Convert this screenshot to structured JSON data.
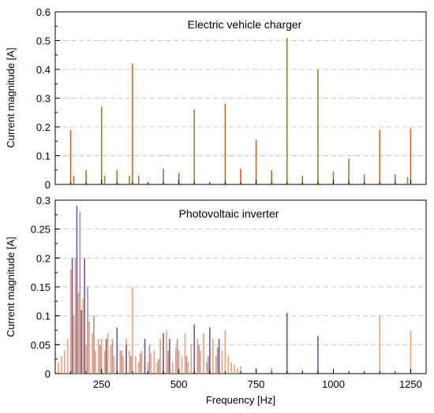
{
  "chart_data": [
    {
      "type": "bar",
      "title": "Electric vehicle charger",
      "ylabel": "Current magnitude [A]",
      "xlabel": "",
      "xlim": [
        100,
        1300
      ],
      "ylim": [
        0,
        0.6
      ],
      "y_ticks": [
        "0",
        "0.1",
        "0.2",
        "0.3",
        "0.4",
        "0.5",
        "0.6"
      ],
      "x_tick_labels_shown": false,
      "grid": "horizontal-dashed",
      "series": [
        {
          "color": "#c8662a",
          "x": [
            150,
            200,
            250,
            300,
            350,
            450,
            500,
            550,
            650,
            700,
            750,
            800,
            850,
            900,
            950,
            1000,
            1050,
            1100,
            1150,
            1200,
            1250
          ],
          "values": [
            0.19,
            0.05,
            0.025,
            0.05,
            0.42,
            0.055,
            0.04,
            0.02,
            0.28,
            0.055,
            0.155,
            0.05,
            0.025,
            0.03,
            0.02,
            0.045,
            0.02,
            0.035,
            0.19,
            0.035,
            0.195
          ]
        },
        {
          "color": "#7a8f3c",
          "x": [
            160,
            250,
            260,
            340,
            370,
            550,
            650,
            850,
            950,
            1050,
            1240
          ],
          "values": [
            0.03,
            0.27,
            0.03,
            0.03,
            0.03,
            0.26,
            0.02,
            0.51,
            0.4,
            0.09,
            0.025
          ]
        }
      ]
    },
    {
      "type": "bar",
      "title": "Photovoltaic inverter",
      "ylabel": "Current magnitude [A]",
      "xlabel": "Frequency [Hz]",
      "xlim": [
        100,
        1300
      ],
      "ylim": [
        0,
        0.3
      ],
      "y_ticks": [
        "0",
        "0.05",
        "0.1",
        "0.15",
        "0.2",
        "0.25",
        "0.3"
      ],
      "x_ticks": [
        "250",
        "500",
        "750",
        "1000",
        "1250"
      ],
      "grid": "horizontal-dashed",
      "series": [
        {
          "color": "#e8a27a",
          "x": [
            110,
            120,
            130,
            140,
            150,
            160,
            165,
            175,
            180,
            190,
            200,
            210,
            220,
            230,
            240,
            250,
            260,
            270,
            280,
            290,
            300,
            310,
            320,
            330,
            340,
            350,
            360,
            370,
            380,
            390,
            400,
            410,
            420,
            430,
            440,
            450,
            460,
            470,
            480,
            490,
            500,
            510,
            520,
            530,
            540,
            550,
            560,
            570,
            580,
            590,
            600,
            610,
            620,
            630,
            640,
            650,
            660,
            670,
            680,
            690,
            700,
            750,
            800,
            900,
            1150,
            1250
          ],
          "values": [
            0.02,
            0.03,
            0.04,
            0.06,
            0.18,
            0.1,
            0.2,
            0.14,
            0.08,
            0.13,
            0.05,
            0.09,
            0.07,
            0.04,
            0.06,
            0.06,
            0.04,
            0.07,
            0.05,
            0.03,
            0.055,
            0.04,
            0.03,
            0.06,
            0.04,
            0.15,
            0.03,
            0.02,
            0.04,
            0.03,
            0.02,
            0.035,
            0.04,
            0.02,
            0.06,
            0.03,
            0.075,
            0.03,
            0.02,
            0.045,
            0.04,
            0.03,
            0.07,
            0.02,
            0.05,
            0.03,
            0.06,
            0.04,
            0.07,
            0.02,
            0.045,
            0.06,
            0.03,
            0.05,
            0.04,
            0.075,
            0.03,
            0.02,
            0.015,
            0.01,
            0.012,
            0.01,
            0.01,
            0.008,
            0.1,
            0.075
          ]
        },
        {
          "color": "#6e5a8e",
          "x": [
            170,
            195,
            155,
            185,
            265,
            300,
            330,
            390,
            450,
            470,
            550,
            600,
            630,
            850,
            950
          ],
          "values": [
            0.29,
            0.2,
            0.2,
            0.11,
            0.06,
            0.08,
            0.05,
            0.06,
            0.07,
            0.06,
            0.085,
            0.08,
            0.06,
            0.105,
            0.065
          ]
        },
        {
          "color": "#b08a9e",
          "x": [
            180,
            205,
            225,
            245,
            285,
            315,
            345,
            375,
            405,
            435,
            465,
            495,
            525,
            565,
            595,
            625
          ],
          "values": [
            0.28,
            0.15,
            0.1,
            0.05,
            0.06,
            0.04,
            0.03,
            0.035,
            0.05,
            0.025,
            0.04,
            0.06,
            0.03,
            0.05,
            0.03,
            0.045
          ]
        }
      ]
    }
  ]
}
